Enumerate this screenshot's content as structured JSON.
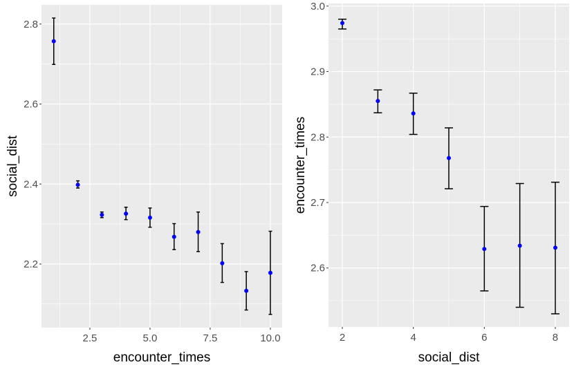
{
  "chart_data": [
    {
      "type": "scatter",
      "xlabel": "encounter_times",
      "ylabel": "social_dist",
      "xlim": [
        0.49,
        10.49
      ],
      "ylim": [
        2.041,
        2.848
      ],
      "xticks": [
        2.5,
        5.0,
        7.5,
        10.0
      ],
      "xtick_labels": [
        "2.5",
        "5.0",
        "7.5",
        "10.0"
      ],
      "yticks": [
        2.2,
        2.4,
        2.6,
        2.8
      ],
      "ytick_labels": [
        "2.2",
        "2.4",
        "2.6",
        "2.8"
      ],
      "grid": true,
      "point_color": "#0000ff",
      "points": [
        {
          "x": 1,
          "y": 2.757,
          "ymin": 2.699,
          "ymax": 2.815
        },
        {
          "x": 2,
          "y": 2.398,
          "ymin": 2.39,
          "ymax": 2.408
        },
        {
          "x": 3,
          "y": 2.323,
          "ymin": 2.316,
          "ymax": 2.33
        },
        {
          "x": 4,
          "y": 2.326,
          "ymin": 2.311,
          "ymax": 2.342
        },
        {
          "x": 5,
          "y": 2.316,
          "ymin": 2.292,
          "ymax": 2.34
        },
        {
          "x": 6,
          "y": 2.268,
          "ymin": 2.236,
          "ymax": 2.301
        },
        {
          "x": 7,
          "y": 2.28,
          "ymin": 2.231,
          "ymax": 2.33
        },
        {
          "x": 8,
          "y": 2.202,
          "ymin": 2.154,
          "ymax": 2.251
        },
        {
          "x": 9,
          "y": 2.133,
          "ymin": 2.085,
          "ymax": 2.181
        },
        {
          "x": 10,
          "y": 2.178,
          "ymin": 2.074,
          "ymax": 2.282
        }
      ]
    },
    {
      "type": "scatter",
      "xlabel": "social_dist",
      "ylabel": "encounter_times",
      "xlim": [
        1.61,
        8.39
      ],
      "ylim": [
        2.51,
        3.004
      ],
      "xticks": [
        2,
        4,
        6,
        8
      ],
      "xtick_labels": [
        "2",
        "4",
        "6",
        "8"
      ],
      "yticks": [
        2.6,
        2.7,
        2.8,
        2.9,
        3.0
      ],
      "ytick_labels": [
        "2.6",
        "2.7",
        "2.8",
        "2.9",
        "3.0"
      ],
      "grid": true,
      "point_color": "#0000ff",
      "points": [
        {
          "x": 2,
          "y": 2.974,
          "ymin": 2.965,
          "ymax": 2.98
        },
        {
          "x": 3,
          "y": 2.855,
          "ymin": 2.837,
          "ymax": 2.872
        },
        {
          "x": 4,
          "y": 2.836,
          "ymin": 2.804,
          "ymax": 2.867
        },
        {
          "x": 5,
          "y": 2.768,
          "ymin": 2.721,
          "ymax": 2.814
        },
        {
          "x": 6,
          "y": 2.629,
          "ymin": 2.565,
          "ymax": 2.694
        },
        {
          "x": 7,
          "y": 2.634,
          "ymin": 2.54,
          "ymax": 2.729
        },
        {
          "x": 8,
          "y": 2.631,
          "ymin": 2.53,
          "ymax": 2.731
        }
      ]
    }
  ]
}
